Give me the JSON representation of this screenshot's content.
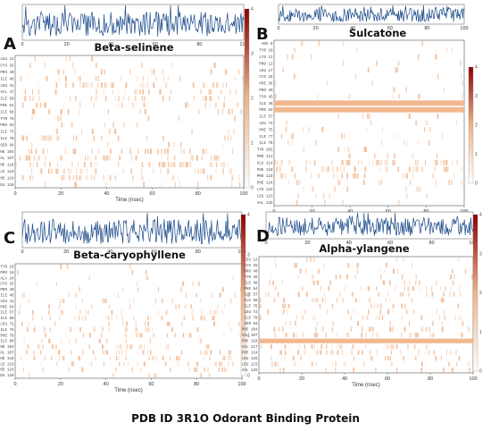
{
  "caption": "PDB ID  3R1O    Odorant Binding Protein",
  "chart_data": [
    {
      "type": "heatmap",
      "panel": "A",
      "title": "Beta-selinene",
      "xlabel": "Time (nsec)",
      "xlim": [
        0,
        100
      ],
      "x_ticks": [
        0,
        20,
        40,
        60,
        80,
        100
      ],
      "colorbar_ticks": [
        0,
        1,
        2,
        3,
        4
      ],
      "colors": {
        "low": "#ffffff",
        "mid": "#f0b48a",
        "high": "#8b0000",
        "trace": "#1a4a8a"
      },
      "rows": [
        "LEU 12",
        "CYS 25",
        "PRO 40",
        "ILE 46",
        "LEU 41",
        "VAL 47",
        "ILE 50",
        "PHE 54",
        "ILE 58",
        "TYR 78",
        "PRO 83",
        "ILE 75",
        "ILE 78",
        "SER 84",
        "PHE 104",
        "VAL 107",
        "PHE 118",
        "ILE 119",
        "PHE 124",
        "LEU 126"
      ],
      "row_density": [
        0.06,
        0.1,
        0.18,
        0.3,
        0.42,
        0.36,
        0.4,
        0.35,
        0.25,
        0.1,
        0.1,
        0.14,
        0.3,
        0.1,
        0.45,
        0.5,
        0.55,
        0.42,
        0.35,
        0.15
      ]
    },
    {
      "type": "heatmap",
      "panel": "B",
      "title": "Sulcatone",
      "xlabel": "Time (nsec)",
      "xlim": [
        0,
        100
      ],
      "x_ticks": [
        0,
        20,
        40,
        60,
        80,
        100
      ],
      "colorbar_ticks": [
        0,
        1,
        2,
        3,
        4
      ],
      "colors": {
        "low": "#ffffff",
        "mid": "#f0b48a",
        "high": "#8b0000",
        "trace": "#1a4a8a"
      },
      "rows": [
        "ARG 8",
        "TYR 10",
        "LYS 11",
        "PRO 12",
        "LEU 17",
        "CYS 25",
        "PHE 36",
        "PRO 40",
        "TYR 45",
        "ILE 46",
        "PHE 54",
        "ILE 57",
        "LEU 72",
        "PHE 75",
        "ILE 77",
        "ILE 78",
        "TYR 102",
        "PRO 111",
        "GLU 114",
        "PHE 118",
        "PRO 119",
        "PHE 124",
        "LYS 122",
        "LEU 123",
        "VAL 125"
      ],
      "row_density": [
        0.05,
        0.05,
        0.08,
        0.06,
        0.05,
        0.05,
        0.06,
        0.05,
        0.1,
        1.0,
        0.95,
        0.1,
        0.08,
        0.12,
        0.1,
        0.12,
        0.1,
        0.1,
        0.6,
        0.45,
        0.3,
        0.2,
        0.1,
        0.08,
        0.05
      ]
    },
    {
      "type": "heatmap",
      "panel": "C",
      "title": "Beta-caryophyllene",
      "xlabel": "Time (nsec)",
      "xlim": [
        0,
        100
      ],
      "x_ticks": [
        0,
        20,
        40,
        60,
        80,
        100
      ],
      "colorbar_ticks": [
        0,
        1,
        2,
        3,
        4
      ],
      "colors": {
        "low": "#ffffff",
        "mid": "#f0b48a",
        "high": "#8b0000",
        "trace": "#1a4a8a"
      },
      "rows": [
        "TYR 10",
        "PRO 18",
        "ALA 24",
        "CYS 25",
        "PRO 40",
        "ILE 46",
        "LEU 41",
        "PHE 54",
        "ILE 57",
        "ILE 58",
        "LEU 72",
        "ILE 75",
        "PHE 78",
        "ILE 80",
        "PHE 104",
        "VAL 107",
        "PHE 118",
        "ILE 119",
        "PHE 124",
        "LEU 126"
      ],
      "row_density": [
        0.05,
        0.05,
        0.06,
        0.08,
        0.12,
        0.15,
        0.18,
        0.2,
        0.3,
        0.35,
        0.25,
        0.3,
        0.28,
        0.2,
        0.35,
        0.4,
        0.38,
        0.3,
        0.25,
        0.12
      ]
    },
    {
      "type": "heatmap",
      "panel": "D",
      "title": "Alpha-ylangene",
      "xlabel": "Time (nsec)",
      "xlim": [
        0,
        100
      ],
      "x_ticks": [
        0,
        20,
        40,
        60,
        80,
        100
      ],
      "colorbar_ticks": [
        0,
        1,
        2,
        3,
        4
      ],
      "colors": {
        "low": "#ffffff",
        "mid": "#f0b48a",
        "high": "#8b0000",
        "trace": "#1a4a8a"
      },
      "rows": [
        "LEU 12",
        "CYS 25",
        "PRO 40",
        "TYR 45",
        "ILE 46",
        "PHE 54",
        "ILE 57",
        "ILE 58",
        "ILE 75",
        "LEU 72",
        "ILE 78",
        "SER 84",
        "PHE 104",
        "VAL 107",
        "PHE 118",
        "VAL 117",
        "PHE 124",
        "LEU 126",
        "LEU 123",
        "VAL 125"
      ],
      "row_density": [
        0.1,
        0.12,
        0.15,
        0.2,
        0.25,
        0.3,
        0.28,
        0.25,
        0.2,
        0.22,
        0.25,
        0.15,
        0.3,
        0.35,
        1.0,
        0.4,
        0.45,
        0.3,
        0.25,
        0.15
      ]
    }
  ]
}
